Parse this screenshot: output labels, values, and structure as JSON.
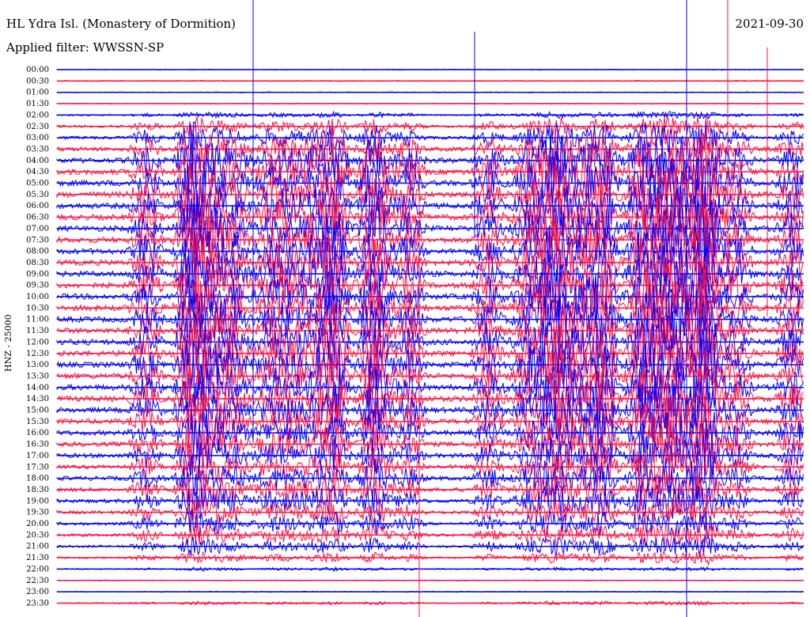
{
  "header": {
    "station": "HL Ydra Isl. (Monastery of Dormition)",
    "filter": "Applied filter: WWSSN-SP",
    "date": "2021-09-30"
  },
  "chart_data": {
    "type": "line",
    "title": "HL Ydra Isl. (Monastery of Dormition)",
    "subtitle": "Applied filter: WWSSN-SP",
    "date": "2021-09-30",
    "ylabel": "HNZ - 25000",
    "row_labels": [
      "00:00",
      "00:30",
      "01:00",
      "01:30",
      "02:00",
      "02:30",
      "03:00",
      "03:30",
      "04:00",
      "04:30",
      "05:00",
      "05:30",
      "06:00",
      "06:30",
      "07:00",
      "07:30",
      "08:00",
      "08:30",
      "09:00",
      "09:30",
      "10:00",
      "10:30",
      "11:00",
      "11:30",
      "12:00",
      "12:30",
      "13:00",
      "13:30",
      "14:00",
      "14:30",
      "15:00",
      "15:30",
      "16:00",
      "16:30",
      "17:00",
      "17:30",
      "18:00",
      "18:30",
      "19:00",
      "19:30",
      "20:00",
      "20:30",
      "21:00",
      "21:30",
      "22:00",
      "22:30",
      "23:00",
      "23:30"
    ],
    "colors": [
      "#0000ff",
      "#ff1040"
    ],
    "activity": [
      0,
      0,
      0,
      0,
      0.1,
      0.3,
      0.5,
      0.7,
      0.9,
      1,
      1,
      1,
      1,
      1,
      1,
      1,
      1,
      1,
      1,
      1,
      1,
      1,
      1,
      1,
      1,
      1,
      1,
      1,
      1,
      1,
      0.95,
      0.9,
      0.85,
      0.8,
      0.75,
      0.7,
      0.7,
      0.65,
      0.6,
      0.5,
      0.45,
      0.4,
      0.3,
      0.2,
      0.05,
      0,
      0,
      0.05
    ],
    "grid": false
  }
}
